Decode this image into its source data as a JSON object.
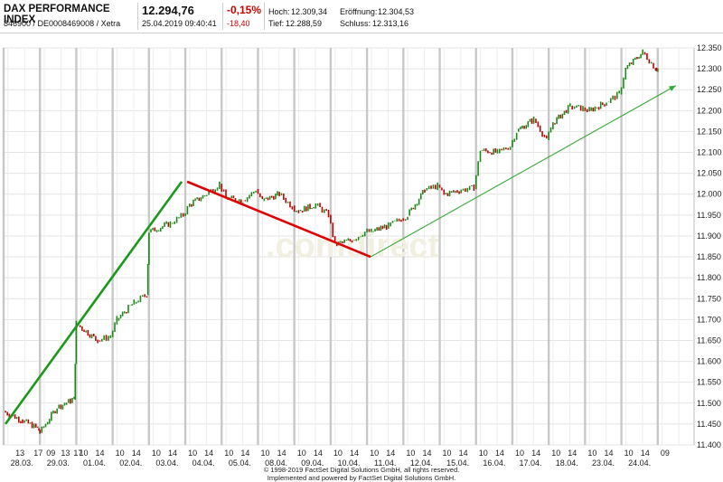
{
  "header": {
    "title": "DAX PERFORMANCE INDEX",
    "subtitle": "846900 / DE0008469008 / Xetra",
    "price": "12.294,76",
    "datetime": "25.04.2019 09:40:41",
    "change_pct": "-0,15%",
    "change_abs": "-18,40",
    "stats": {
      "hoch_label": "Hoch:",
      "hoch": "12.309,34",
      "tief_label": "Tief:",
      "tief": "12.288,59",
      "eroeffnung_label": "Eröffnung:",
      "eroeffnung": "12.304,53",
      "schluss_label": "Schluss:",
      "schluss": "12.313,16"
    }
  },
  "watermark": ".comdirect",
  "footer": {
    "line1": "© 1998-2019 FactSet Digital Solutions GmbH, all rights reserved.",
    "line2": "Implemented and powered by FactSet Digital Solutions GmbH."
  },
  "colors": {
    "up": "#1a8a1a",
    "down": "#c00000",
    "trend_up": "#1a9a1a",
    "trend_down": "#e00000",
    "trend_up_thin": "#33aa33",
    "grid": "#e4e4e4",
    "session_sep": "#c8c8c8"
  },
  "chart_data": {
    "type": "line",
    "title": "",
    "xlabel": "",
    "ylabel": "",
    "ylim": [
      11400,
      12350
    ],
    "yticks": [
      11400,
      11450,
      11500,
      11550,
      11600,
      11650,
      11700,
      11750,
      11800,
      11850,
      11900,
      11950,
      12000,
      12050,
      12100,
      12150,
      12200,
      12250,
      12300,
      12350
    ],
    "ytick_labels": [
      "11.400",
      "11.450",
      "11.500",
      "11.550",
      "11.600",
      "11.650",
      "11.700",
      "11.750",
      "11.800",
      "11.850",
      "11.900",
      "11.950",
      "12.000",
      "12.050",
      "12.100",
      "12.150",
      "12.200",
      "12.250",
      "12.300",
      "12.350"
    ],
    "x_time_labels": [
      "13",
      "17",
      "09",
      "13",
      "17",
      "10",
      "14",
      "10",
      "14",
      "10",
      "14",
      "10",
      "14",
      "10",
      "14",
      "10",
      "14",
      "10",
      "14",
      "10",
      "14",
      "10",
      "14",
      "10",
      "14",
      "10",
      "14",
      "10",
      "14",
      "10",
      "14",
      "10",
      "14",
      "10",
      "14",
      "10",
      "14",
      "09"
    ],
    "x_date_labels": [
      "28.03.",
      "29.03.",
      "01.04.",
      "02.04.",
      "03.04.",
      "04.04.",
      "05.04.",
      "08.04.",
      "09.04.",
      "10.04.",
      "11.04.",
      "12.04.",
      "15.04.",
      "16.04.",
      "17.04.",
      "18.04.",
      "23.04.",
      "24.04."
    ],
    "grid": true,
    "series": [
      {
        "points": [
          [
            "28.03. 09:00",
            11480
          ],
          [
            "28.03. 13:00",
            11460
          ],
          [
            "28.03. 17:00",
            11440
          ],
          [
            "29.03. 09:00",
            11430
          ],
          [
            "29.03. 13:00",
            11490
          ],
          [
            "29.03. 17:00",
            11510
          ],
          [
            "01.04. 09:00",
            11690
          ],
          [
            "01.04. 14:00",
            11650
          ],
          [
            "01.04. 17:00",
            11660
          ],
          [
            "02.04. 10:00",
            11700
          ],
          [
            "02.04. 14:00",
            11740
          ],
          [
            "02.04. 17:00",
            11760
          ],
          [
            "03.04. 09:00",
            11910
          ],
          [
            "03.04. 14:00",
            11930
          ],
          [
            "03.04. 17:00",
            11950
          ],
          [
            "04.04. 10:00",
            11975
          ],
          [
            "04.04. 14:00",
            12000
          ],
          [
            "04.04. 17:00",
            12025
          ],
          [
            "05.04. 10:00",
            11990
          ],
          [
            "05.04. 14:00",
            11985
          ],
          [
            "05.04. 17:00",
            12010
          ],
          [
            "08.04. 10:00",
            11985
          ],
          [
            "08.04. 14:00",
            12000
          ],
          [
            "08.04. 17:00",
            11970
          ],
          [
            "09.04. 10:00",
            11960
          ],
          [
            "09.04. 14:00",
            11975
          ],
          [
            "09.04. 17:00",
            11950
          ],
          [
            "10.04. 10:00",
            11880
          ],
          [
            "10.04. 14:00",
            11890
          ],
          [
            "10.04. 17:00",
            11910
          ],
          [
            "11.04. 10:00",
            11910
          ],
          [
            "11.04. 14:00",
            11925
          ],
          [
            "11.04. 17:00",
            11940
          ],
          [
            "12.04. 10:00",
            11950
          ],
          [
            "12.04. 14:00",
            12010
          ],
          [
            "12.04. 17:00",
            12020
          ],
          [
            "15.04. 10:00",
            12000
          ],
          [
            "15.04. 14:00",
            12010
          ],
          [
            "15.04. 17:00",
            12015
          ],
          [
            "16.04. 10:00",
            12105
          ],
          [
            "16.04. 14:00",
            12100
          ],
          [
            "16.04. 17:00",
            12115
          ],
          [
            "17.04. 10:00",
            12150
          ],
          [
            "17.04. 14:00",
            12180
          ],
          [
            "17.04. 17:00",
            12130
          ],
          [
            "18.04. 10:00",
            12170
          ],
          [
            "18.04. 14:00",
            12210
          ],
          [
            "18.04. 17:00",
            12205
          ],
          [
            "23.04. 10:00",
            12200
          ],
          [
            "23.04. 14:00",
            12220
          ],
          [
            "23.04. 17:00",
            12240
          ],
          [
            "24.04. 10:00",
            12300
          ],
          [
            "24.04. 14:00",
            12340
          ],
          [
            "24.04. 17:00",
            12300
          ],
          [
            "25.04. 09:00",
            12300
          ]
        ]
      }
    ],
    "trendlines": [
      {
        "from": [
          "28.03.",
          11450
        ],
        "to": [
          "03.04.",
          12030
        ]
      },
      {
        "from": [
          "04.04.",
          12030
        ],
        "to": [
          "11.04.",
          11850
        ]
      },
      {
        "from": [
          "11.04.",
          11850
        ],
        "to": [
          "25.04.",
          12260
        ]
      }
    ]
  }
}
